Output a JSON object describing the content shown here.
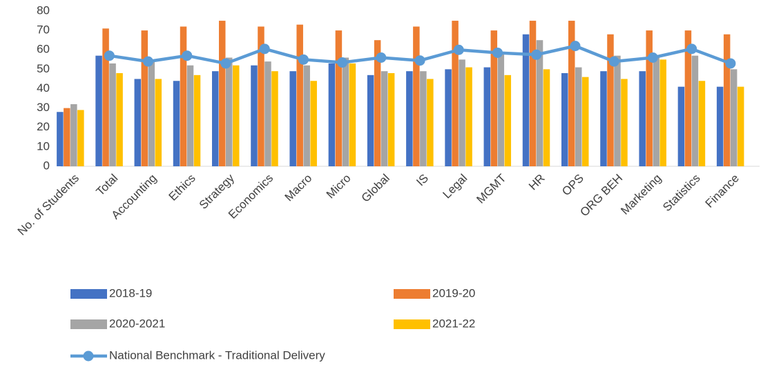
{
  "chart_data": {
    "type": "bar",
    "categories": [
      "No. of Students",
      "Total",
      "Accounting",
      "Ethics",
      "Strategy",
      "Economics",
      "Macro",
      "Micro",
      "Global",
      "IS",
      "Legal",
      "MGMT",
      "HR",
      "OPS",
      "ORG BEH",
      "Marketing",
      "Statistics",
      "Finance"
    ],
    "series": [
      {
        "name": "2018-19",
        "color": "#4472c4",
        "values": [
          28,
          57,
          45,
          44,
          49,
          52,
          49,
          53,
          47,
          49,
          50,
          51,
          68,
          48,
          49,
          49,
          41,
          41
        ]
      },
      {
        "name": "2019-20",
        "color": "#ed7d31",
        "values": [
          30,
          71,
          70,
          72,
          75,
          72,
          73,
          70,
          65,
          72,
          75,
          70,
          75,
          75,
          68,
          70,
          70,
          68
        ]
      },
      {
        "name": "2020-2021",
        "color": "#a5a5a5",
        "values": [
          32,
          53,
          55,
          52,
          56,
          54,
          52,
          56,
          49,
          49,
          55,
          59,
          65,
          51,
          57,
          57,
          57,
          50
        ]
      },
      {
        "name": "2021-22",
        "color": "#ffc000",
        "values": [
          29,
          48,
          45,
          47,
          52,
          49,
          44,
          53,
          48,
          45,
          51,
          47,
          50,
          46,
          45,
          55,
          44,
          41
        ]
      },
      {
        "name": "National Benchmark - Traditional Delivery",
        "type": "line",
        "color": "#5b9bd5",
        "values": [
          null,
          57,
          54,
          57,
          53,
          60.5,
          55,
          53.5,
          56,
          54.5,
          60,
          58.5,
          57.5,
          62,
          54,
          56,
          60.5,
          53
        ]
      }
    ],
    "ylim": [
      0,
      80
    ],
    "yticks": [
      0,
      10,
      20,
      30,
      40,
      50,
      60,
      70,
      80
    ],
    "grid": false,
    "legend": "bottom"
  }
}
